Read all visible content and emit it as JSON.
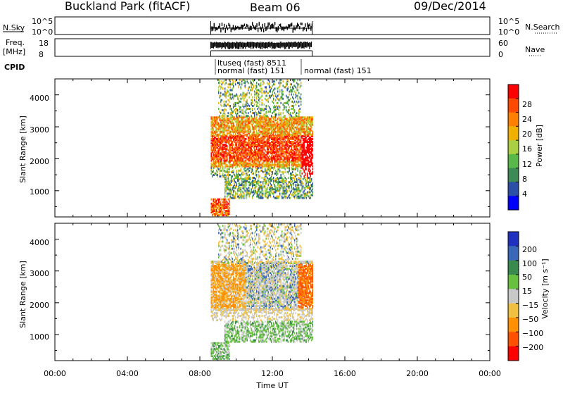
{
  "header": {
    "station": "Buckland Park (fitACF)",
    "beam": "Beam 06",
    "date": "09/Dec/2014"
  },
  "panels": {
    "nsky_label": "N.Sky",
    "nsky_ticks": [
      "10^5",
      "10^0"
    ],
    "nsearch_label": "N.Search",
    "nsearch_ticks": [
      "10^5",
      "10^0"
    ],
    "freq_label": "Freq.",
    "freq_unit": "[MHz]",
    "freq_ticks": [
      "18",
      "8"
    ],
    "nave_label": "Nave",
    "nave_ticks": [
      "60",
      "0"
    ],
    "cpid_label": "CPID",
    "cpid_entries": [
      {
        "text": "ltuseq (fast) 8511"
      },
      {
        "text": "normal (fast) 151"
      },
      {
        "text": "normal (fast) 151"
      }
    ]
  },
  "chart_data": [
    {
      "type": "heatmap",
      "name": "power",
      "ylabel": "Slant Range [km]",
      "y_ticks": [
        "1000",
        "2000",
        "3000",
        "4000"
      ],
      "ylim": [
        180,
        4500
      ],
      "xlim": [
        0,
        24
      ],
      "colorbar": {
        "label": "Power [dB]",
        "ticks": [
          "4",
          "8",
          "12",
          "16",
          "20",
          "24",
          "28"
        ],
        "colors": [
          "#0000ff",
          "#2b4fa8",
          "#3c8a56",
          "#58b848",
          "#a8d040",
          "#f0b000",
          "#ff8000",
          "#ff4800",
          "#ff0000"
        ]
      },
      "data_extent_hours": [
        8.6,
        14.2
      ]
    },
    {
      "type": "heatmap",
      "name": "velocity",
      "ylabel": "Slant Range [km]",
      "y_ticks": [
        "1000",
        "2000",
        "3000",
        "4000"
      ],
      "ylim": [
        180,
        4500
      ],
      "xlim": [
        0,
        24
      ],
      "colorbar": {
        "label": "Velocity [m s⁻¹]",
        "ticks": [
          "200",
          "100",
          "50",
          "15",
          "−15",
          "−50",
          "−100",
          "−200"
        ],
        "colors": [
          "#2030c0",
          "#3a68b8",
          "#3a8a50",
          "#68c040",
          "#c8c8c8",
          "#f0c040",
          "#ff9000",
          "#ff5000",
          "#ff0000"
        ]
      },
      "data_extent_hours": [
        8.6,
        14.2
      ]
    }
  ],
  "time_axis": {
    "ticks": [
      "00:00",
      "04:00",
      "08:00",
      "12:00",
      "16:00",
      "20:00",
      "00:00"
    ],
    "label": "Time UT"
  }
}
